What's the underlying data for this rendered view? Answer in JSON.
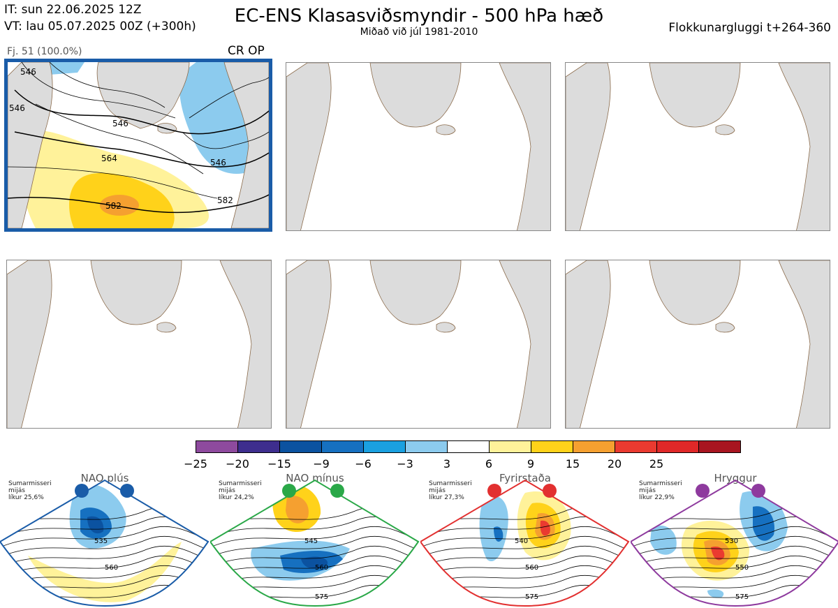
{
  "header": {
    "it": "IT: sun 22.06.2025 12Z",
    "vt": "VT: lau 05.07.2025 00Z  (+300h)",
    "title": "EC-ENS Klasasviðsmyndir - 500 hPa hæð",
    "subtitle": "Miðað við júl 1981-2010",
    "window": "Flokkunargluggi t+264-360"
  },
  "cluster": {
    "label": "Fj. 51 (100.0%)",
    "tag": "CR OP",
    "contour_labels": [
      "546",
      "564",
      "582",
      "546",
      "582",
      "546",
      "546"
    ]
  },
  "colorbar": {
    "colors": [
      "#8e4a9e",
      "#3e2e8e",
      "#0b52a0",
      "#1670c0",
      "#1aa0e0",
      "#8ccbee",
      "#ffffff",
      "#fff29a",
      "#ffd21a",
      "#f5a030",
      "#ea3a30",
      "#e02828",
      "#a81520"
    ],
    "ticks": [
      "−25",
      "−20",
      "−15",
      "−9",
      "−6",
      "−3",
      "3",
      "6",
      "9",
      "15",
      "20",
      "25"
    ]
  },
  "regimes": [
    {
      "title": "NAO plús",
      "info": [
        "Sumarmisseri",
        "mijás",
        "líkur 25,6%"
      ],
      "color": "#1a5ca8",
      "labels": [
        "535",
        "560"
      ]
    },
    {
      "title": "NAO mínus",
      "info": [
        "Sumarmisseri",
        "mijás",
        "líkur 24,2%"
      ],
      "color": "#2aa848",
      "labels": [
        "545",
        "560",
        "575"
      ]
    },
    {
      "title": "Fyrirstaða",
      "info": [
        "Sumarmisseri",
        "mijás",
        "líkur 27,3%"
      ],
      "color": "#e23030",
      "labels": [
        "540",
        "560",
        "575"
      ]
    },
    {
      "title": "Hryggur",
      "info": [
        "Sumarmisseri",
        "mijás",
        "líkur 22,9%"
      ],
      "color": "#8e3a9e",
      "labels": [
        "530",
        "550",
        "575"
      ]
    }
  ]
}
